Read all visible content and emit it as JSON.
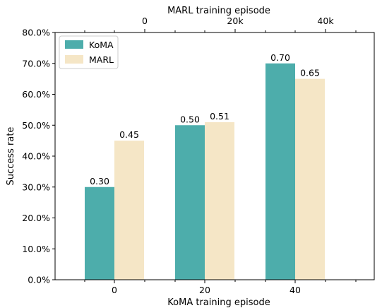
{
  "chart_data": {
    "type": "bar",
    "xlabel": "KoMA training episode",
    "ylabel": "Success rate",
    "top_xlabel": "MARL training episode",
    "categories": [
      "0",
      "20",
      "40"
    ],
    "top_tick_labels": [
      "0",
      "20k",
      "40k"
    ],
    "ylim": [
      0,
      0.8
    ],
    "yticks": [
      "0.0%",
      "10.0%",
      "20.0%",
      "30.0%",
      "40.0%",
      "50.0%",
      "60.0%",
      "70.0%",
      "80.0%"
    ],
    "series": [
      {
        "name": "KoMA",
        "values": [
          0.3,
          0.5,
          0.7
        ],
        "labels": [
          "0.30",
          "0.50",
          "0.70"
        ],
        "color": "#4dadab"
      },
      {
        "name": "MARL",
        "values": [
          0.45,
          0.51,
          0.65
        ],
        "labels": [
          "0.45",
          "0.51",
          "0.65"
        ],
        "color": "#f5e6c6"
      }
    ],
    "legend_position": "top-left",
    "grid": false
  }
}
